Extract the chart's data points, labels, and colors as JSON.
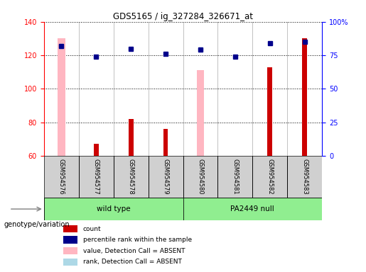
{
  "title": "GDS5165 / ig_327284_326671_at",
  "samples": [
    "GSM954576",
    "GSM954577",
    "GSM954578",
    "GSM954579",
    "GSM954580",
    "GSM954581",
    "GSM954582",
    "GSM954583"
  ],
  "group1_name": "wild type",
  "group1_indices": [
    0,
    1,
    2,
    3
  ],
  "group2_name": "PA2449 null",
  "group2_indices": [
    4,
    5,
    6,
    7
  ],
  "group_color": "#90ee90",
  "group_label": "genotype/variation",
  "count_values": [
    null,
    67,
    82,
    76,
    null,
    60,
    113,
    130
  ],
  "percentile_rank": [
    82,
    74,
    80,
    76,
    79,
    74,
    84,
    85
  ],
  "absent_value": [
    130,
    null,
    null,
    null,
    111,
    null,
    null,
    null
  ],
  "absent_rank": [
    82,
    null,
    null,
    null,
    79,
    null,
    null,
    null
  ],
  "ylim_left": [
    60,
    140
  ],
  "ylim_right": [
    0,
    100
  ],
  "yticks_left": [
    60,
    80,
    100,
    120,
    140
  ],
  "yticks_right": [
    0,
    25,
    50,
    75,
    100
  ],
  "ytick_right_labels": [
    "0",
    "25",
    "50",
    "75",
    "100%"
  ],
  "bar_color_count": "#cc0000",
  "bar_color_absent_value": "#ffb6c1",
  "dot_color_percentile": "#00008b",
  "dot_color_absent_rank": "#add8e6",
  "legend_labels": [
    "count",
    "percentile rank within the sample",
    "value, Detection Call = ABSENT",
    "rank, Detection Call = ABSENT"
  ],
  "legend_colors": [
    "#cc0000",
    "#00008b",
    "#ffb6c1",
    "#add8e6"
  ]
}
